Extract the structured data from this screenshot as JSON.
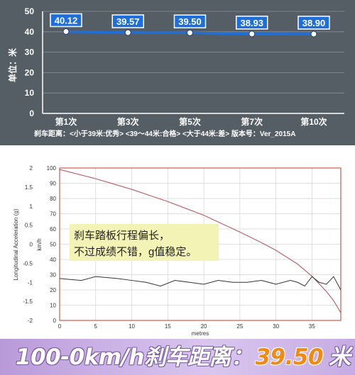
{
  "chart_data": [
    {
      "type": "line",
      "categories": [
        "第1次",
        "第3次",
        "第5次",
        "第7次",
        "第10次"
      ],
      "values": [
        40.12,
        39.57,
        39.5,
        38.93,
        38.9
      ],
      "data_labels": [
        "40.12",
        "39.57",
        "39.50",
        "38.93",
        "38.90"
      ],
      "ylabel": "单位：米",
      "ylim": [
        0,
        50
      ],
      "yticks": [
        "0",
        "10",
        "20",
        "30",
        "40",
        "50"
      ],
      "grid": true,
      "footer": "刹车距离：<小于39米:优秀>  <39～44米:合格>  <大于44米:差>    版本号：Ver_2015A",
      "colors": {
        "background": "#555d65",
        "line": "#1e6fd9",
        "label_box": "#1e6fd9",
        "grid": "#8a9097"
      }
    },
    {
      "type": "line",
      "xlabel": "metres",
      "xlim": [
        0,
        39
      ],
      "xticks": [
        "0",
        "5",
        "10",
        "15",
        "20",
        "25",
        "30",
        "35"
      ],
      "ylabel_left": "Longitudinal Acceleration (g)",
      "ylim_left": [
        -2,
        2
      ],
      "yticks_left": [
        "-2",
        "-1.5",
        "-1",
        "-0.5",
        "0",
        "0.5",
        "1",
        "1.5",
        "2"
      ],
      "ylabel_right": "km/h",
      "ylim_right": [
        0,
        100
      ],
      "yticks_right": [
        "0",
        "10",
        "20",
        "30",
        "40",
        "50",
        "60",
        "70",
        "80",
        "90",
        "100"
      ],
      "grid": true,
      "series": [
        {
          "axis": "right",
          "color": "#b04a55",
          "x": [
            0,
            5,
            10,
            15,
            20,
            25,
            28,
            30,
            33,
            35,
            36,
            37,
            38,
            39
          ],
          "y": [
            99,
            93,
            86,
            78,
            69,
            58,
            51,
            46,
            37,
            29,
            24,
            19,
            13,
            5
          ]
        },
        {
          "axis": "left",
          "color": "#333333",
          "x": [
            0,
            3,
            5,
            8,
            10,
            12,
            14,
            16,
            18,
            20,
            22,
            24,
            26,
            28,
            30,
            32,
            33,
            34,
            35,
            36,
            37,
            38,
            39
          ],
          "y": [
            -0.9,
            -0.95,
            -0.85,
            -0.9,
            -0.95,
            -1.0,
            -1.1,
            -0.95,
            -1.0,
            -1.05,
            -0.95,
            -1.0,
            -1.0,
            -0.95,
            -1.05,
            -0.95,
            -1.0,
            -1.1,
            -0.85,
            -1.0,
            -1.05,
            -0.85,
            -1.2
          ]
        }
      ],
      "annotation": [
        "刹车踏板行程偏长，",
        "不过成绩不错，g值稳定。"
      ],
      "colors": {
        "grid": "#d4d4d4",
        "plot_border": "#c0392b",
        "annotation_bg": "#f3f3b6"
      }
    }
  ],
  "banner": {
    "prefix": "100-0km/h刹车距离：",
    "value": "39.50",
    "unit": "米"
  }
}
